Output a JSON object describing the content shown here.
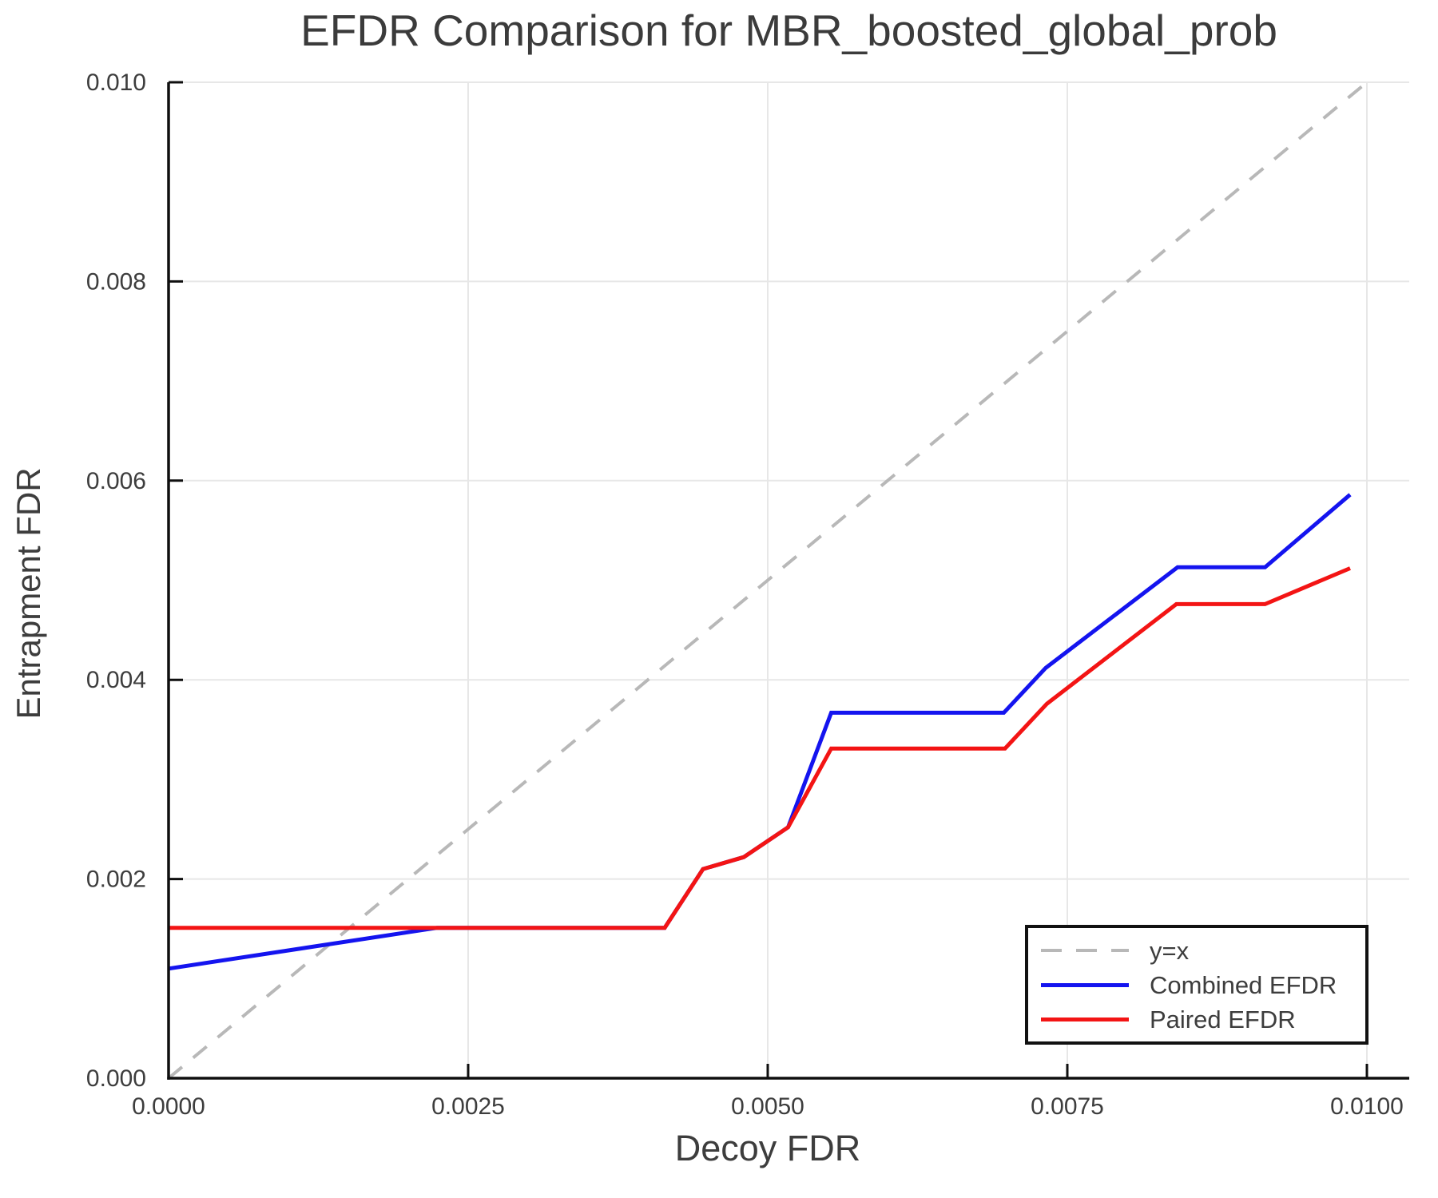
{
  "title": "EFDR Comparison for MBR_boosted_global_prob",
  "chart_data": {
    "type": "line",
    "title": "EFDR Comparison for MBR_boosted_global_prob",
    "xlabel": "Decoy FDR",
    "ylabel": "Entrapment FDR",
    "xlim": [
      0.0,
      0.01
    ],
    "ylim": [
      0.0,
      0.01
    ],
    "x_tick_labels": [
      "0.0000",
      "0.0025",
      "0.0050",
      "0.0075",
      "0.0100"
    ],
    "y_tick_labels": [
      "0.000",
      "0.002",
      "0.004",
      "0.006",
      "0.008",
      "0.010"
    ],
    "grid": true,
    "legend_position": "bottom-right",
    "colors": {
      "grid": "#e7e7e7",
      "axis": "#0f0f0f",
      "text": "#3d3d3d"
    },
    "series": [
      {
        "name": "y=x",
        "style": "dashed",
        "color": "#b8b8b8",
        "points": [
          [
            0.0,
            0.0
          ],
          [
            0.01,
            0.01
          ]
        ]
      },
      {
        "name": "Combined EFDR",
        "style": "solid",
        "color": "#1414ef",
        "points": [
          [
            0.0,
            0.0011
          ],
          [
            0.00224,
            0.00151
          ],
          [
            0.00414,
            0.00151
          ],
          [
            0.00446,
            0.0021
          ],
          [
            0.0048,
            0.00222
          ],
          [
            0.00517,
            0.00252
          ],
          [
            0.00553,
            0.00367
          ],
          [
            0.00697,
            0.00367
          ],
          [
            0.00732,
            0.00412
          ],
          [
            0.00842,
            0.00513
          ],
          [
            0.00915,
            0.00513
          ],
          [
            0.00986,
            0.00586
          ]
        ]
      },
      {
        "name": "Paired EFDR",
        "style": "solid",
        "color": "#f31414",
        "points": [
          [
            0.0,
            0.00151
          ],
          [
            0.00414,
            0.00151
          ],
          [
            0.00446,
            0.0021
          ],
          [
            0.0048,
            0.00222
          ],
          [
            0.00517,
            0.00252
          ],
          [
            0.00553,
            0.00331
          ],
          [
            0.00698,
            0.00331
          ],
          [
            0.00733,
            0.00376
          ],
          [
            0.00841,
            0.00476
          ],
          [
            0.00915,
            0.00476
          ],
          [
            0.00986,
            0.00512
          ]
        ]
      }
    ]
  }
}
